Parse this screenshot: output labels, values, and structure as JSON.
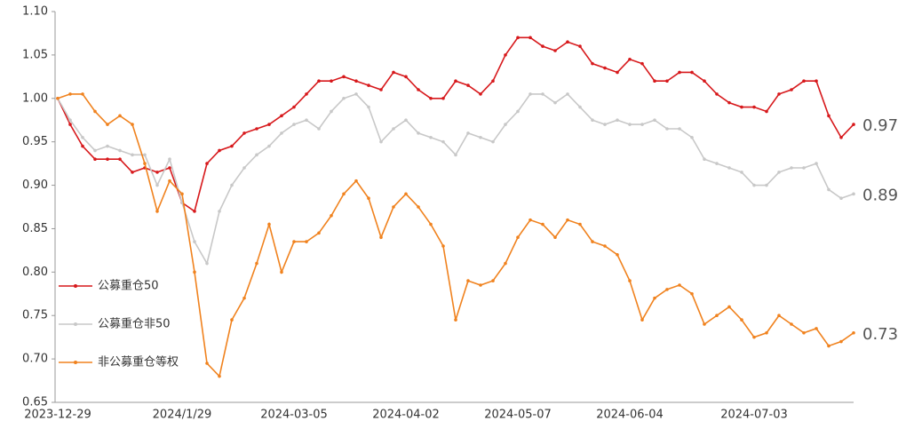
{
  "chart_data": {
    "type": "line",
    "categories": [
      "2023-12-29",
      null,
      null,
      null,
      null,
      null,
      null,
      null,
      null,
      null,
      "2024/1/29",
      null,
      null,
      null,
      null,
      null,
      null,
      null,
      null,
      "2024-03-05",
      null,
      null,
      null,
      null,
      null,
      null,
      null,
      null,
      "2024-04-02",
      null,
      null,
      null,
      null,
      null,
      null,
      null,
      null,
      "2024-05-07",
      null,
      null,
      null,
      null,
      null,
      null,
      null,
      null,
      "2024-06-04",
      null,
      null,
      null,
      null,
      null,
      null,
      null,
      null,
      null,
      "2024-07-03",
      null,
      null,
      null,
      null,
      null,
      null,
      null,
      null
    ],
    "ylim": [
      0.65,
      1.1
    ],
    "yticks": [
      0.65,
      {
        "value": 0.7,
        "label": "0.70"
      },
      0.75,
      {
        "value": 0.8,
        "label": "0.80"
      },
      0.85,
      {
        "value": 0.9,
        "label": "0.90"
      },
      0.95,
      {
        "value": 1.0,
        "label": "1.00"
      },
      1.05,
      {
        "value": 1.1,
        "label": "1.10"
      }
    ],
    "series": [
      {
        "name": "公募重仓50",
        "color": "#d7191c",
        "end_label": "0.97",
        "values": [
          1.0,
          0.97,
          0.945,
          0.93,
          0.93,
          0.93,
          0.915,
          0.92,
          0.915,
          0.92,
          0.88,
          0.87,
          0.925,
          0.94,
          0.945,
          0.96,
          0.965,
          0.97,
          0.98,
          0.99,
          1.005,
          1.02,
          1.02,
          1.025,
          1.02,
          1.015,
          1.01,
          1.03,
          1.025,
          1.01,
          1.0,
          1.0,
          1.02,
          1.015,
          1.005,
          1.02,
          1.05,
          1.07,
          1.07,
          1.06,
          1.055,
          1.065,
          1.06,
          1.04,
          1.035,
          1.03,
          1.045,
          1.04,
          1.02,
          1.02,
          1.03,
          1.03,
          1.02,
          1.005,
          0.995,
          0.99,
          0.99,
          0.985,
          1.005,
          1.01,
          1.02,
          1.02,
          0.98,
          0.955,
          0.97
        ]
      },
      {
        "name": "公募重仓非50",
        "color": "#c8c8c8",
        "end_label": "0.89",
        "values": [
          1.0,
          0.975,
          0.955,
          0.94,
          0.945,
          0.94,
          0.935,
          0.935,
          0.9,
          0.93,
          0.88,
          0.835,
          0.81,
          0.87,
          0.9,
          0.92,
          0.935,
          0.945,
          0.96,
          0.97,
          0.975,
          0.965,
          0.985,
          1.0,
          1.005,
          0.99,
          0.95,
          0.965,
          0.975,
          0.96,
          0.955,
          0.95,
          0.935,
          0.96,
          0.955,
          0.95,
          0.97,
          0.985,
          1.005,
          1.005,
          0.995,
          1.005,
          0.99,
          0.975,
          0.97,
          0.975,
          0.97,
          0.97,
          0.975,
          0.965,
          0.965,
          0.955,
          0.93,
          0.925,
          0.92,
          0.915,
          0.9,
          0.9,
          0.915,
          0.92,
          0.92,
          0.925,
          0.895,
          0.885,
          0.89
        ]
      },
      {
        "name": "非公募重仓等权",
        "color": "#f0821e",
        "end_label": "0.73",
        "values": [
          1.0,
          1.005,
          1.005,
          0.985,
          0.97,
          0.98,
          0.97,
          0.925,
          0.87,
          0.905,
          0.89,
          0.8,
          0.695,
          0.68,
          0.745,
          0.77,
          0.81,
          0.855,
          0.8,
          0.835,
          0.835,
          0.845,
          0.865,
          0.89,
          0.905,
          0.885,
          0.84,
          0.875,
          0.89,
          0.875,
          0.855,
          0.83,
          0.745,
          0.79,
          0.785,
          0.79,
          0.81,
          0.84,
          0.86,
          0.855,
          0.84,
          0.86,
          0.855,
          0.835,
          0.83,
          0.82,
          0.79,
          0.745,
          0.77,
          0.78,
          0.785,
          0.775,
          0.74,
          0.75,
          0.76,
          0.745,
          0.725,
          0.73,
          0.75,
          0.74,
          0.73,
          0.735,
          0.715,
          0.72,
          0.73
        ]
      }
    ],
    "legend": "left",
    "grid": false
  }
}
